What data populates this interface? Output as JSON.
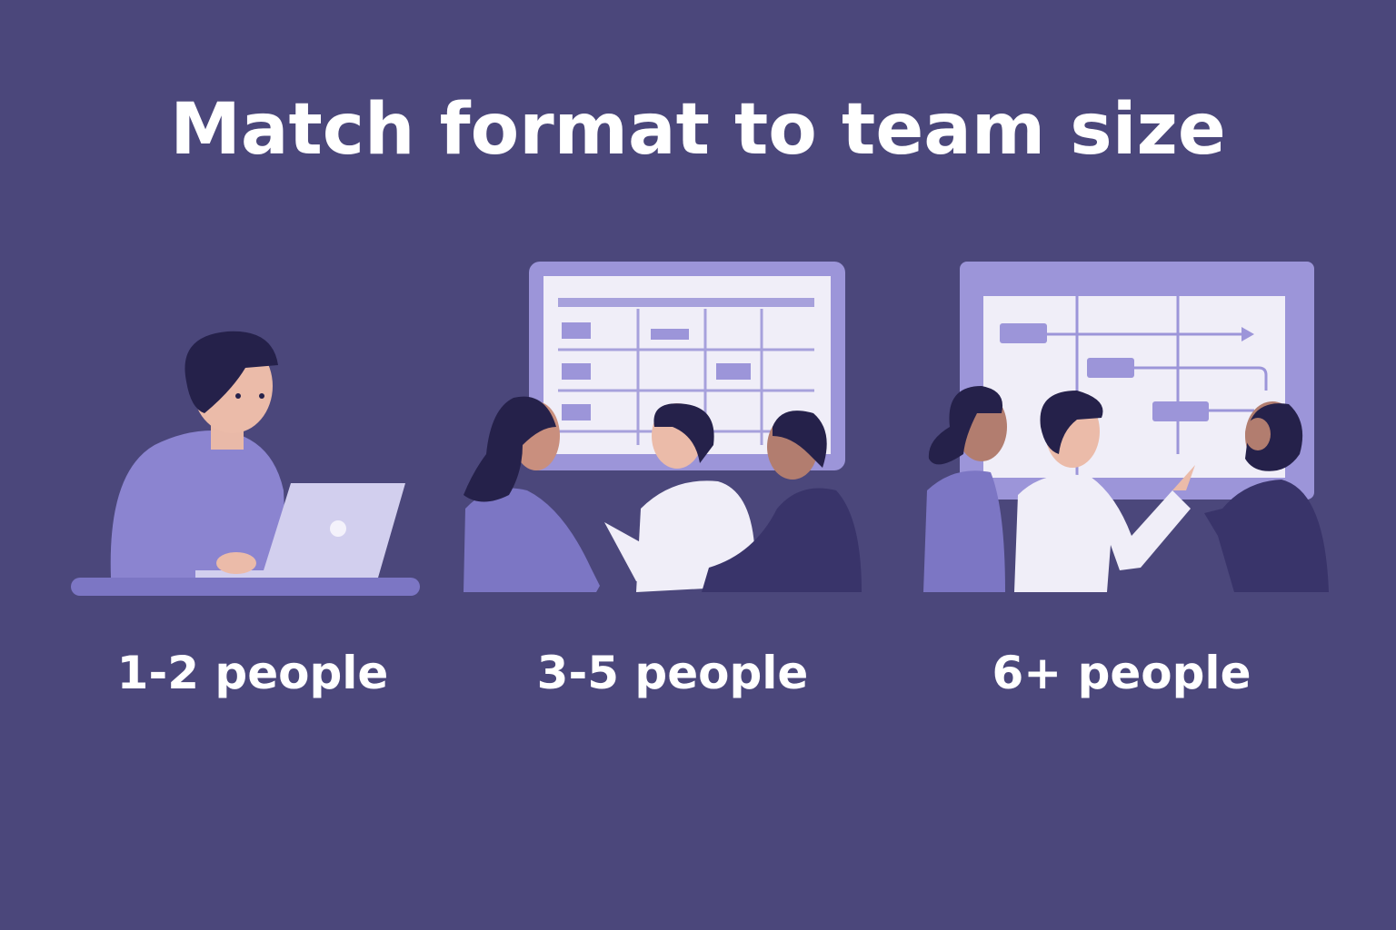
{
  "title": "Match format to team size",
  "panels": [
    {
      "label": "1-2 people",
      "icon": "person-with-laptop-illustration"
    },
    {
      "label": "3-5 people",
      "icon": "small-team-at-board-illustration"
    },
    {
      "label": "6+ people",
      "icon": "large-team-at-timeline-board-illustration"
    }
  ],
  "colors": {
    "background": "#4b477b",
    "accent": "#9c95d9",
    "board": "#f0eef8",
    "text": "#ffffff"
  }
}
